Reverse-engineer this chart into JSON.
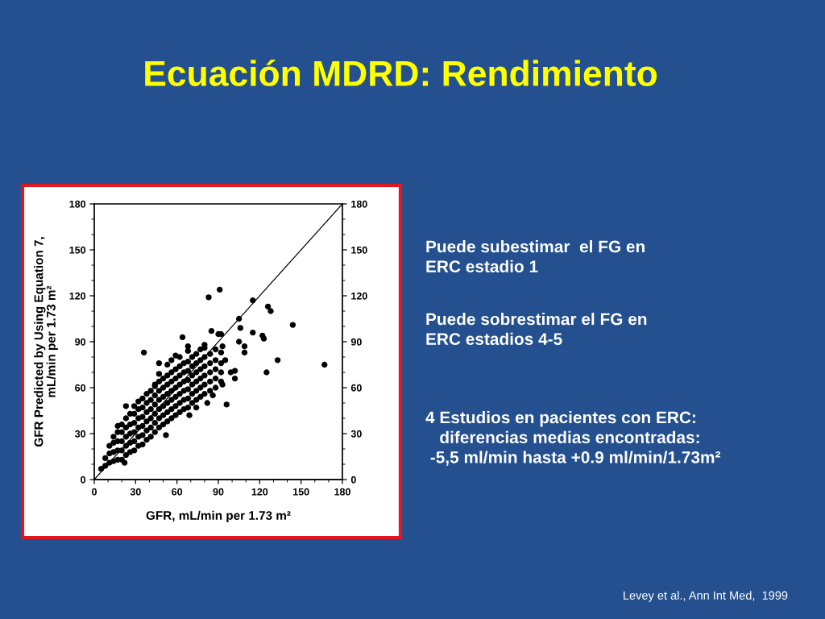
{
  "chart_data": {
    "type": "scatter",
    "title": "Ecuación MDRD: Rendimiento",
    "xlabel": "GFR, mL/min per 1.73 m²",
    "ylabel": "GFR Predicted by Using Equation 7,\nmL/min per 1.73 m²",
    "xlim": [
      0,
      180
    ],
    "ylim": [
      0,
      180
    ],
    "y2lim": [
      0,
      180
    ],
    "xticks": [
      0,
      {
        "value": 10,
        "label": null
      },
      {
        "value": 20,
        "label": null
      },
      30,
      {
        "value": 40,
        "label": null
      },
      {
        "value": 50,
        "label": null
      },
      60,
      {
        "value": 70,
        "label": null
      },
      {
        "value": 80,
        "label": null
      },
      90,
      {
        "value": 100,
        "label": null
      },
      {
        "value": 110,
        "label": null
      },
      120,
      {
        "value": 130,
        "label": null
      },
      {
        "value": 140,
        "label": null
      },
      150,
      {
        "value": 160,
        "label": null
      },
      {
        "value": 170,
        "label": null
      },
      180
    ],
    "yticks": [
      0,
      {
        "value": 10,
        "label": null
      },
      {
        "value": 20,
        "label": null
      },
      30,
      {
        "value": 40,
        "label": null
      },
      {
        "value": 50,
        "label": null
      },
      60,
      {
        "value": 70,
        "label": null
      },
      {
        "value": 80,
        "label": null
      },
      90,
      {
        "value": 100,
        "label": null
      },
      {
        "value": 110,
        "label": null
      },
      120,
      {
        "value": 130,
        "label": null
      },
      {
        "value": 140,
        "label": null
      },
      150,
      {
        "value": 160,
        "label": null
      },
      {
        "value": 170,
        "label": null
      },
      180
    ],
    "y2ticks": [
      0,
      {
        "value": 10,
        "label": null
      },
      {
        "value": 20,
        "label": null
      },
      30,
      {
        "value": 40,
        "label": null
      },
      {
        "value": 50,
        "label": null
      },
      60,
      {
        "value": 70,
        "label": null
      },
      {
        "value": 80,
        "label": null
      },
      90,
      {
        "value": 100,
        "label": null
      },
      {
        "value": 110,
        "label": null
      },
      120,
      {
        "value": 130,
        "label": null
      },
      {
        "value": 140,
        "label": null
      },
      150,
      {
        "value": 160,
        "label": null
      },
      {
        "value": 170,
        "label": null
      },
      180
    ],
    "marker": "circle",
    "grid": false,
    "series": [
      {
        "color": "#000000",
        "x": [
          5,
          8,
          8,
          11,
          11,
          11,
          14,
          14,
          14,
          14,
          17,
          17,
          17,
          17,
          20,
          20,
          20,
          20,
          20,
          23,
          23,
          23,
          23,
          23,
          26,
          26,
          26,
          26,
          26,
          29,
          29,
          29,
          29,
          29,
          29,
          32,
          32,
          32,
          32,
          32,
          32,
          35,
          35,
          35,
          35,
          35,
          35,
          38,
          38,
          38,
          38,
          38,
          38,
          41,
          41,
          41,
          41,
          41,
          41,
          44,
          44,
          44,
          44,
          44,
          44,
          47,
          47,
          47,
          47,
          47,
          47,
          47,
          50,
          50,
          50,
          50,
          50,
          50,
          53,
          53,
          53,
          53,
          53,
          53,
          53,
          56,
          56,
          56,
          56,
          56,
          56,
          56,
          59,
          59,
          59,
          59,
          59,
          59,
          62,
          62,
          62,
          62,
          62,
          62,
          62,
          65,
          65,
          65,
          65,
          65,
          65,
          68,
          68,
          68,
          68,
          68,
          68,
          68,
          71,
          71,
          71,
          71,
          71,
          71,
          74,
          74,
          74,
          74,
          74,
          74,
          77,
          77,
          77,
          77,
          77,
          77,
          80,
          80,
          80,
          80,
          80,
          80,
          84,
          84,
          84,
          84,
          84,
          88,
          88,
          88,
          88,
          88,
          92,
          92,
          92,
          92,
          36,
          83,
          91,
          115,
          126,
          128,
          144,
          105,
          106,
          115,
          122,
          123,
          85,
          90,
          92,
          64,
          105,
          109,
          109,
          133,
          167,
          125,
          96,
          102,
          102,
          99,
          82,
          74,
          69,
          52,
          22,
          17,
          23,
          47,
          59,
          44,
          68,
          80,
          93,
          95,
          86,
          93
        ],
        "values": [
          7,
          9,
          14,
          11,
          17,
          22,
          12,
          18,
          24,
          28,
          13,
          19,
          25,
          31,
          13,
          19,
          25,
          31,
          36,
          16,
          22,
          28,
          34,
          40,
          18,
          24,
          30,
          36,
          43,
          19,
          25,
          31,
          37,
          43,
          48,
          22,
          28,
          34,
          40,
          46,
          51,
          23,
          29,
          35,
          41,
          47,
          53,
          26,
          32,
          38,
          44,
          50,
          56,
          28,
          34,
          40,
          46,
          52,
          58,
          31,
          37,
          43,
          49,
          55,
          61,
          34,
          40,
          46,
          52,
          58,
          64,
          69,
          36,
          42,
          48,
          54,
          60,
          66,
          38,
          44,
          50,
          56,
          62,
          68,
          75,
          40,
          46,
          52,
          58,
          64,
          70,
          78,
          42,
          48,
          54,
          60,
          66,
          72,
          44,
          50,
          56,
          62,
          68,
          74,
          80,
          46,
          52,
          58,
          64,
          70,
          76,
          47,
          53,
          59,
          65,
          71,
          77,
          84,
          50,
          56,
          62,
          68,
          74,
          80,
          52,
          58,
          64,
          70,
          76,
          82,
          54,
          60,
          66,
          72,
          78,
          85,
          56,
          62,
          68,
          74,
          80,
          86,
          58,
          64,
          70,
          76,
          82,
          60,
          66,
          72,
          78,
          85,
          64,
          70,
          76,
          83,
          83,
          119,
          124,
          117,
          113,
          110,
          101,
          105,
          99,
          96,
          94,
          92,
          97,
          95,
          95,
          93,
          90,
          87,
          83,
          78,
          75,
          70,
          49,
          71,
          66,
          70,
          50,
          47,
          42,
          29,
          11,
          35,
          48,
          76,
          81,
          62,
          87,
          88,
          87,
          78,
          55,
          62
        ]
      },
      {
        "type": "line",
        "color": "#000000",
        "marker": "none",
        "x": [
          0,
          180
        ],
        "values": [
          0,
          180
        ]
      }
    ],
    "annotations": [
      "Puede subestimar  el FG en\nERC estadio 1",
      "Puede sobrestimar el FG en\nERC estadios 4-5",
      "4 Estudios en pacientes con ERC:\n   diferencias medias encontradas:\n -5,5 ml/min hasta +0.9 ml/min/1.73m²",
      "Levey et al., Ann Int Med,  1999"
    ]
  }
}
